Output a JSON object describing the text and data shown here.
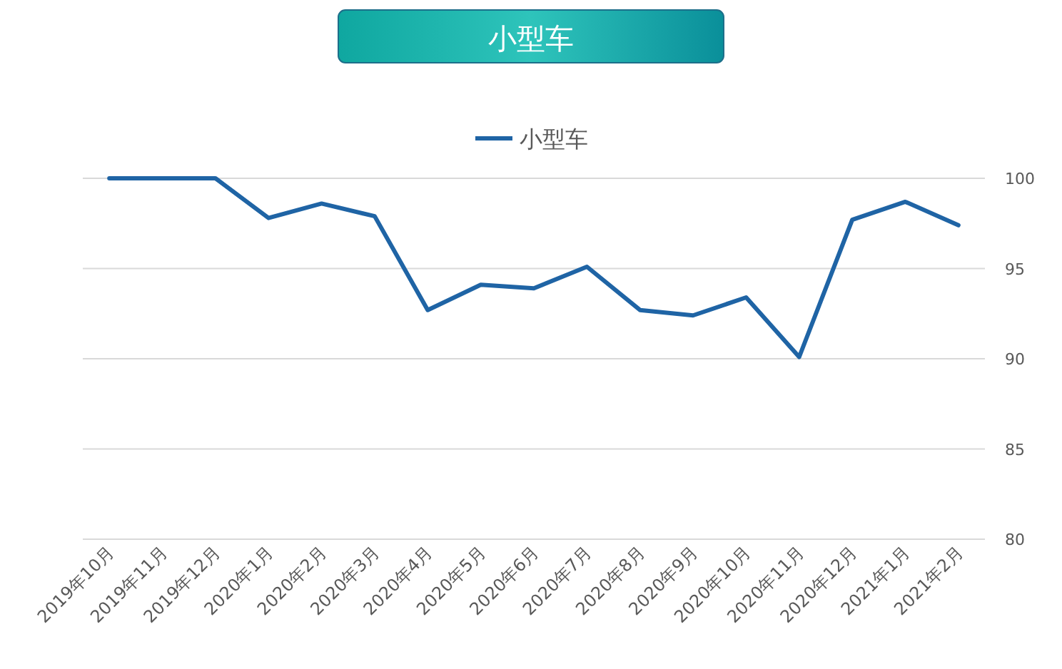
{
  "chart_data": {
    "type": "line",
    "title": "小型车",
    "categories": [
      "2019年10月",
      "2019年11月",
      "2019年12月",
      "2020年1月",
      "2020年2月",
      "2020年3月",
      "2020年4月",
      "2020年5月",
      "2020年6月",
      "2020年7月",
      "2020年8月",
      "2020年9月",
      "2020年10月",
      "2020年11月",
      "2020年12月",
      "2021年1月",
      "2021年2月"
    ],
    "series": [
      {
        "name": "小型车",
        "color": "#1f64a5",
        "values": [
          100,
          100,
          100,
          97.8,
          98.6,
          97.9,
          92.7,
          94.1,
          93.9,
          95.1,
          92.7,
          92.4,
          93.4,
          90.1,
          97.7,
          98.7,
          97.4
        ]
      }
    ],
    "ylim": [
      80,
      100
    ],
    "yticks": [
      80,
      85,
      90,
      95,
      100
    ],
    "grid": "y",
    "legend": "top",
    "marker": "none",
    "line_style": "solid"
  }
}
